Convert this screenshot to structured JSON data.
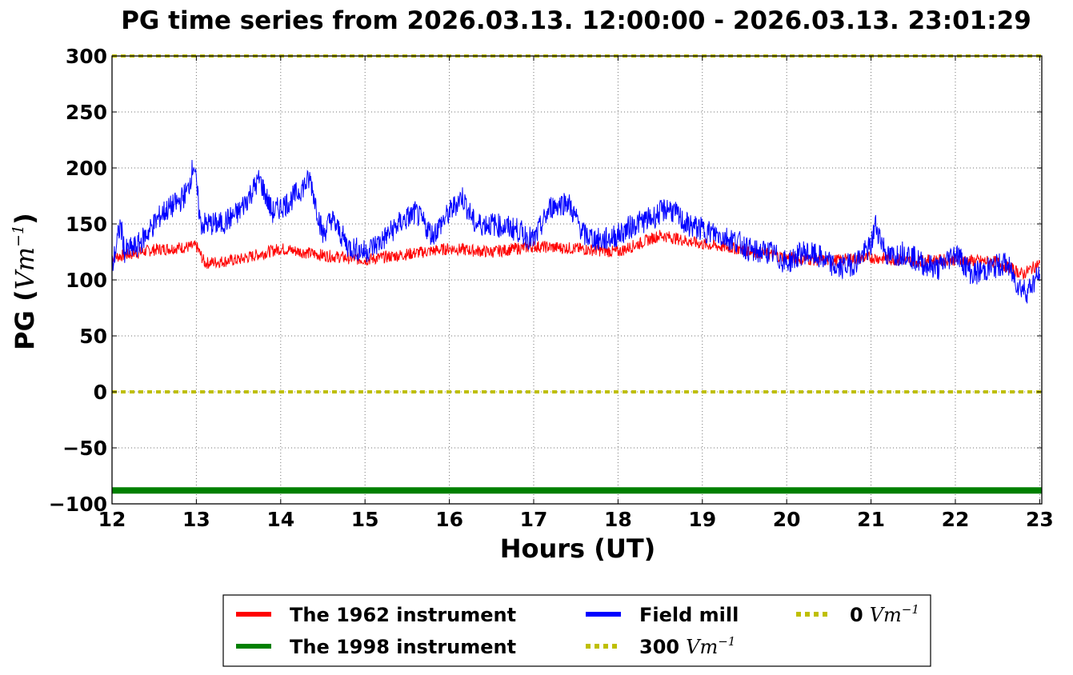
{
  "chart_data": {
    "type": "line",
    "title": "PG time series from 2026.03.13. 12:00:00 - 2026.03.13. 23:01:29",
    "xlabel": "Hours (UT)",
    "ylabel_prefix": "PG (",
    "ylabel_math": "Vm",
    "ylabel_exp": "−1",
    "ylabel_suffix": ")",
    "xlim": [
      12,
      23.025
    ],
    "ylim": [
      -100,
      300
    ],
    "xticks": [
      12,
      13,
      14,
      15,
      16,
      17,
      18,
      19,
      20,
      21,
      22,
      23
    ],
    "yticks": [
      300,
      250,
      200,
      150,
      100,
      50,
      0,
      -50,
      -100
    ],
    "ytick_labels": [
      "300",
      "250",
      "200",
      "150",
      "100",
      "50",
      "0",
      "−50",
      "−100"
    ],
    "grid": true,
    "legend_position": "bottom-center",
    "series": [
      {
        "name": "The 1962 instrument",
        "color": "#ff0000",
        "style": "solid",
        "x": [
          12.0,
          12.5,
          13.0,
          13.1,
          13.5,
          14.0,
          14.5,
          15.0,
          15.5,
          16.0,
          16.5,
          17.0,
          17.5,
          18.0,
          18.5,
          19.0,
          19.5,
          20.0,
          20.5,
          21.0,
          21.5,
          22.0,
          22.5,
          22.8,
          23.0
        ],
        "y": [
          120,
          127,
          130,
          115,
          118,
          128,
          122,
          118,
          123,
          128,
          125,
          130,
          128,
          125,
          140,
          132,
          127,
          120,
          117,
          120,
          117,
          118,
          116,
          105,
          115
        ]
      },
      {
        "name": "The 1998 instrument",
        "color": "#008000",
        "style": "solid",
        "x": [
          12.0,
          23.025
        ],
        "y": [
          -88,
          -88
        ]
      },
      {
        "name": "Field mill",
        "color": "#0000ff",
        "style": "solid",
        "x": [
          12.0,
          12.1,
          12.15,
          12.3,
          12.6,
          12.8,
          12.9,
          12.97,
          13.05,
          13.3,
          13.5,
          13.75,
          13.9,
          14.1,
          14.35,
          14.5,
          14.6,
          14.8,
          15.0,
          15.2,
          15.4,
          15.6,
          15.8,
          16.0,
          16.15,
          16.3,
          16.5,
          16.8,
          17.0,
          17.2,
          17.4,
          17.6,
          17.8,
          18.0,
          18.2,
          18.4,
          18.6,
          18.8,
          19.0,
          19.2,
          19.4,
          19.6,
          19.8,
          20.0,
          20.2,
          20.4,
          20.6,
          20.8,
          21.0,
          21.05,
          21.2,
          21.4,
          21.6,
          21.8,
          22.0,
          22.2,
          22.4,
          22.6,
          22.75,
          22.85,
          23.0
        ],
        "y": [
          110,
          150,
          125,
          130,
          160,
          170,
          180,
          205,
          150,
          150,
          160,
          190,
          160,
          170,
          190,
          140,
          155,
          130,
          125,
          135,
          150,
          160,
          140,
          160,
          175,
          150,
          150,
          145,
          135,
          165,
          170,
          140,
          135,
          140,
          150,
          155,
          165,
          150,
          145,
          140,
          135,
          125,
          125,
          115,
          125,
          120,
          110,
          115,
          130,
          150,
          120,
          125,
          115,
          110,
          125,
          105,
          110,
          115,
          95,
          90,
          105
        ]
      },
      {
        "name": "300",
        "name_math": "Vm",
        "name_exp": "−1",
        "color": "#bfbf00",
        "style": "dotted",
        "x": [
          12.0,
          23.025
        ],
        "y": [
          300,
          300
        ]
      },
      {
        "name": "0",
        "name_math": "Vm",
        "name_exp": "−1",
        "color": "#bfbf00",
        "style": "dotted",
        "x": [
          12.0,
          23.025
        ],
        "y": [
          0,
          0
        ]
      }
    ]
  }
}
